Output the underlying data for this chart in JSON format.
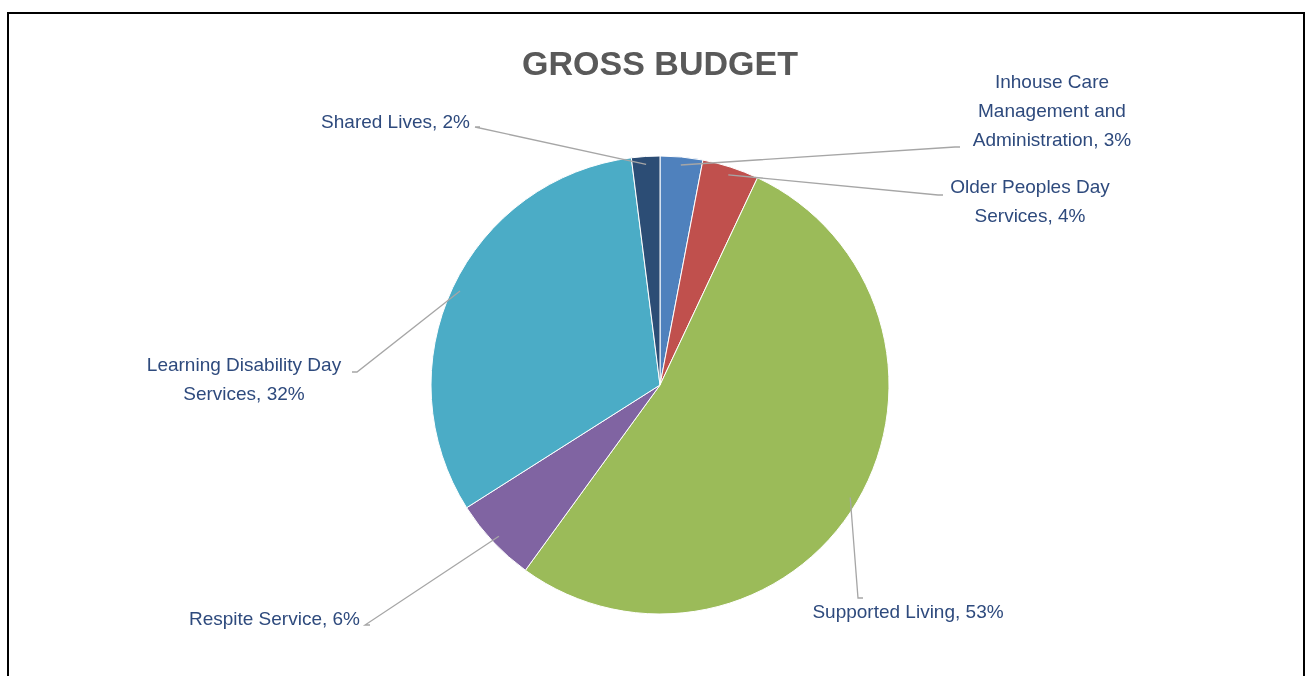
{
  "chart_data": {
    "type": "pie",
    "title": "GROSS BUDGET",
    "categories": [
      "Inhouse Care Management and Administration",
      "Older Peoples Day Services",
      "Supported Living",
      "Respite Service",
      "Learning Disability Day Services",
      "Shared Lives"
    ],
    "values": [
      3,
      4,
      53,
      6,
      32,
      2
    ],
    "value_labels": [
      "3%",
      "4%",
      "53%",
      "6%",
      "32%",
      "2%"
    ],
    "colors": [
      "#4f81bd",
      "#c0504d",
      "#9bbb59",
      "#8064a2",
      "#4bacc6",
      "#2c4d75"
    ]
  }
}
